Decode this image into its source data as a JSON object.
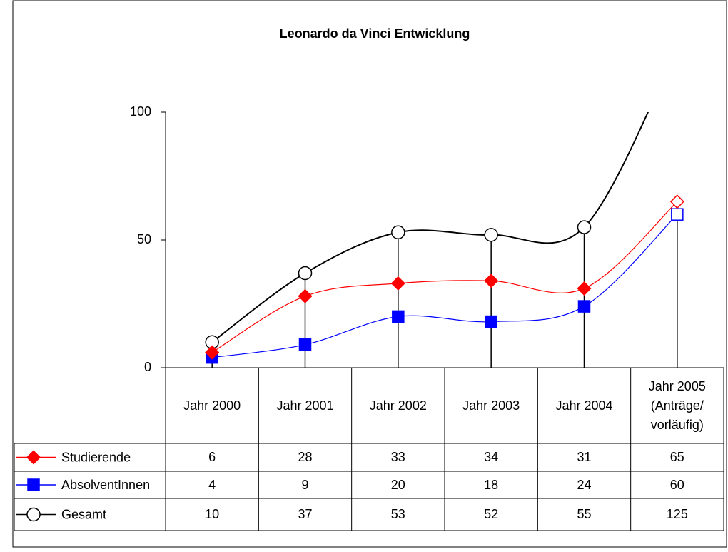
{
  "chart_data": {
    "type": "line",
    "title": "Leonardo da Vinci Entwicklung",
    "categories": [
      "Jahr 2000",
      "Jahr 2001",
      "Jahr 2002",
      "Jahr 2003",
      "Jahr 2004",
      "Jahr 2005 (Anträge/ vorläufig)"
    ],
    "series": [
      {
        "name": "Studierende",
        "color": "#ff0000",
        "marker": "diamond",
        "values": [
          6,
          28,
          33,
          34,
          31,
          65
        ]
      },
      {
        "name": "AbsolventInnen",
        "color": "#0000ff",
        "marker": "square",
        "values": [
          4,
          9,
          20,
          18,
          24,
          60
        ]
      },
      {
        "name": "Gesamt",
        "color": "#000000",
        "marker": "circle",
        "values": [
          10,
          37,
          53,
          52,
          55,
          125
        ]
      }
    ],
    "ylim": [
      0,
      100
    ],
    "yticks": [
      0,
      50,
      100
    ],
    "grid": false,
    "smooth": true,
    "data_table": true
  }
}
